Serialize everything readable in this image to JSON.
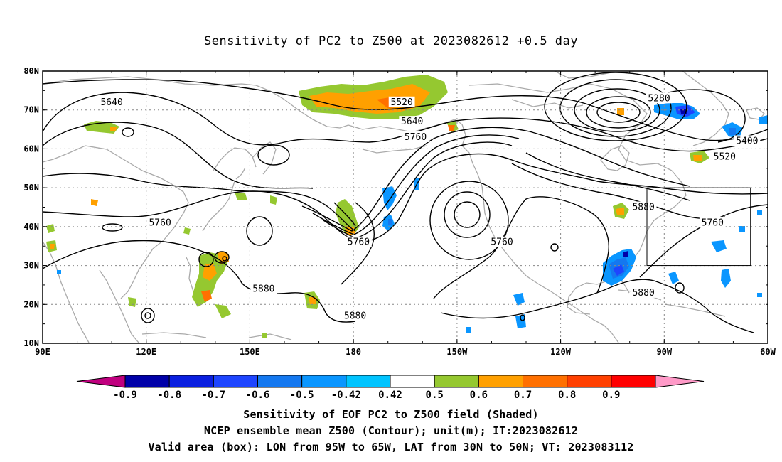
{
  "title": "Sensitivity of PC2 to Z500 at 2023082612 +0.5 day",
  "map": {
    "projection": "cylindrical equidistant",
    "lon_range": [
      90,
      300
    ],
    "lat_range": [
      10,
      80
    ],
    "grid_lines": "dotted",
    "lat_tick_labels": [
      "80N",
      "70N",
      "60N",
      "50N",
      "40N",
      "30N",
      "20N",
      "10N"
    ],
    "lon_tick_labels": [
      "90E",
      "120E",
      "150E",
      "180",
      "150W",
      "120W",
      "90W",
      "60W"
    ],
    "coastline_color": "#aaaaaa",
    "contour_color": "#000000",
    "contour_labels": [
      {
        "text": "5640",
        "lon": 110,
        "lat": 72
      },
      {
        "text": "5520",
        "lon": 194,
        "lat": 72
      },
      {
        "text": "5640",
        "lon": 197,
        "lat": 67
      },
      {
        "text": "5760",
        "lon": 198,
        "lat": 63
      },
      {
        "text": "5280",
        "lon": 268.5,
        "lat": 73
      },
      {
        "text": "5400",
        "lon": 294,
        "lat": 62
      },
      {
        "text": "5520",
        "lon": 287.5,
        "lat": 58
      },
      {
        "text": "5880",
        "lon": 264,
        "lat": 45
      },
      {
        "text": "5760",
        "lon": 284,
        "lat": 41
      },
      {
        "text": "5760",
        "lon": 124,
        "lat": 41
      },
      {
        "text": "5760",
        "lon": 181.5,
        "lat": 36
      },
      {
        "text": "5760",
        "lon": 223,
        "lat": 36
      },
      {
        "text": "5880",
        "lon": 154,
        "lat": 24
      },
      {
        "text": "5880",
        "lon": 180.5,
        "lat": 17
      },
      {
        "text": "5880",
        "lon": 264,
        "lat": 23
      }
    ],
    "valid_box": {
      "lon_west": 265,
      "lon_east": 295,
      "lat_south": 30,
      "lat_north": 50
    }
  },
  "colorbar": {
    "tick_labels": [
      "-0.9",
      "-0.8",
      "-0.7",
      "-0.6",
      "-0.5",
      "-0.42",
      "0.42",
      "0.5",
      "0.6",
      "0.7",
      "0.8",
      "0.9"
    ],
    "colors": [
      "#c0007f",
      "#0000a8",
      "#0a1fe0",
      "#1e45ff",
      "#1478f0",
      "#0a96ff",
      "#00c4ff",
      "#ffffff",
      "#95c830",
      "#ffa000",
      "#ff7000",
      "#ff4000",
      "#ff0000",
      "#ff9ac8"
    ]
  },
  "captions": [
    "Sensitivity of EOF PC2 to Z500 field (Shaded)",
    "NCEP ensemble mean Z500 (Contour); unit(m); IT:2023082612",
    "Valid area (box): LON from 95W to 65W, LAT from 30N to 50N; VT: 2023083112"
  ]
}
